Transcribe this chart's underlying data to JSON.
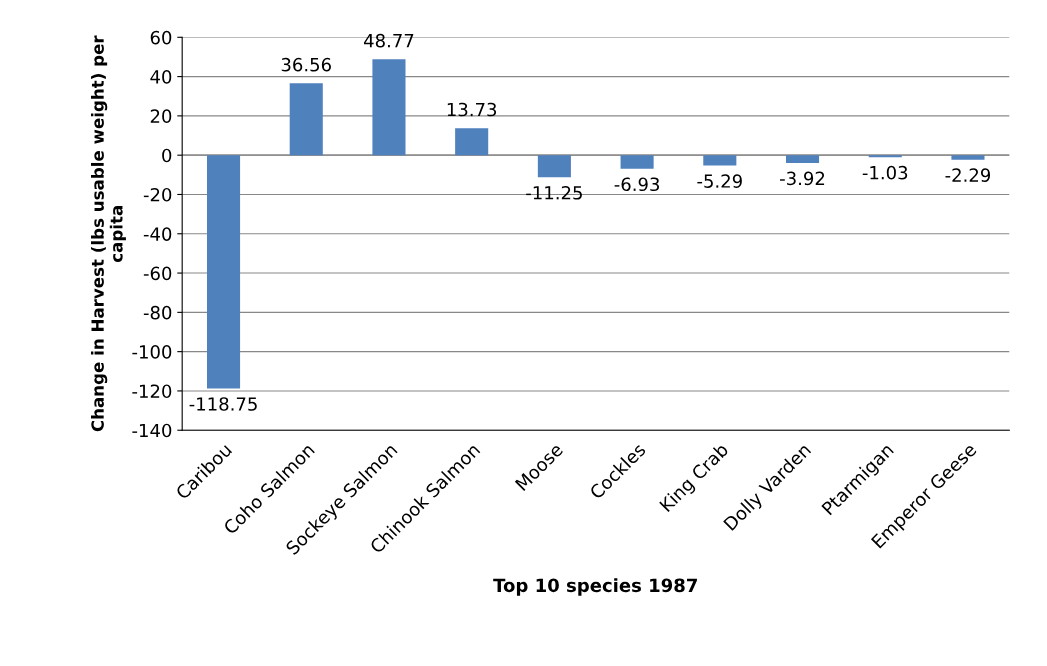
{
  "chart_data": {
    "type": "bar",
    "xlabel": "Top 10 species 1987",
    "ylabel": "Change in Harvest (lbs usable weight) per capita",
    "categories": [
      "Caribou",
      "Coho Salmon",
      "Sockeye Salmon",
      "Chinook Salmon",
      "Moose",
      "Cockles",
      "King Crab",
      "Dolly Varden",
      "Ptarmigan",
      "Emperor Geese"
    ],
    "values": [
      -118.75,
      36.56,
      48.77,
      13.73,
      -11.25,
      -6.93,
      -5.29,
      -3.92,
      -1.03,
      -2.29
    ],
    "color": "#4f81bd",
    "data_labels": true,
    "ylim": [
      -140,
      60
    ],
    "yticks": [
      -140,
      -120,
      -100,
      -80,
      -60,
      -40,
      -20,
      0,
      20,
      40,
      60
    ],
    "grid": "y"
  }
}
